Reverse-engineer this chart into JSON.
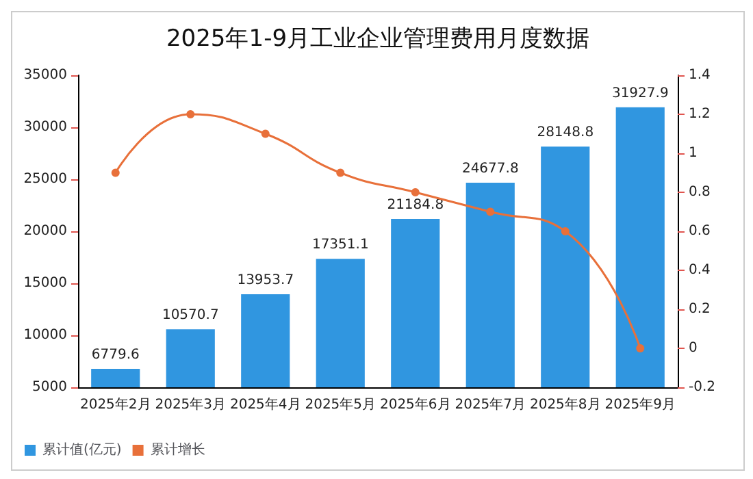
{
  "chart_data": {
    "type": "bar",
    "title": "2025年1-9月工业企业管理费用月度数据",
    "categories": [
      "2025年2月",
      "2025年3月",
      "2025年4月",
      "2025年5月",
      "2025年6月",
      "2025年7月",
      "2025年8月",
      "2025年9月"
    ],
    "series": [
      {
        "name": "累计值(亿元)",
        "color": "#3096e0",
        "values": [
          6779.6,
          10570.7,
          13953.7,
          17351.1,
          21184.8,
          24677.8,
          28148.8,
          31927.9
        ],
        "value_labels": [
          "6779.6",
          "10570.7",
          "13953.7",
          "17351.1",
          "21184.8",
          "24677.8",
          "28148.8",
          "31927.9"
        ]
      },
      {
        "name": "累计增长",
        "type": "line",
        "axis": "y2",
        "color": "#e8703a",
        "values": [
          0.9,
          1.2,
          1.1,
          0.9,
          0.8,
          0.7,
          0.6,
          0.0
        ],
        "marker": "circle"
      }
    ],
    "ylim": [
      5000,
      35000
    ],
    "yticks": [
      5000,
      10000,
      15000,
      20000,
      25000,
      30000,
      35000
    ],
    "y2lim": [
      -0.2,
      1.4
    ],
    "y2ticks": [
      -0.2,
      0,
      0.2,
      0.4,
      0.6,
      0.8,
      1,
      1.2,
      1.4
    ],
    "grid": false,
    "legend": "bottom left"
  }
}
